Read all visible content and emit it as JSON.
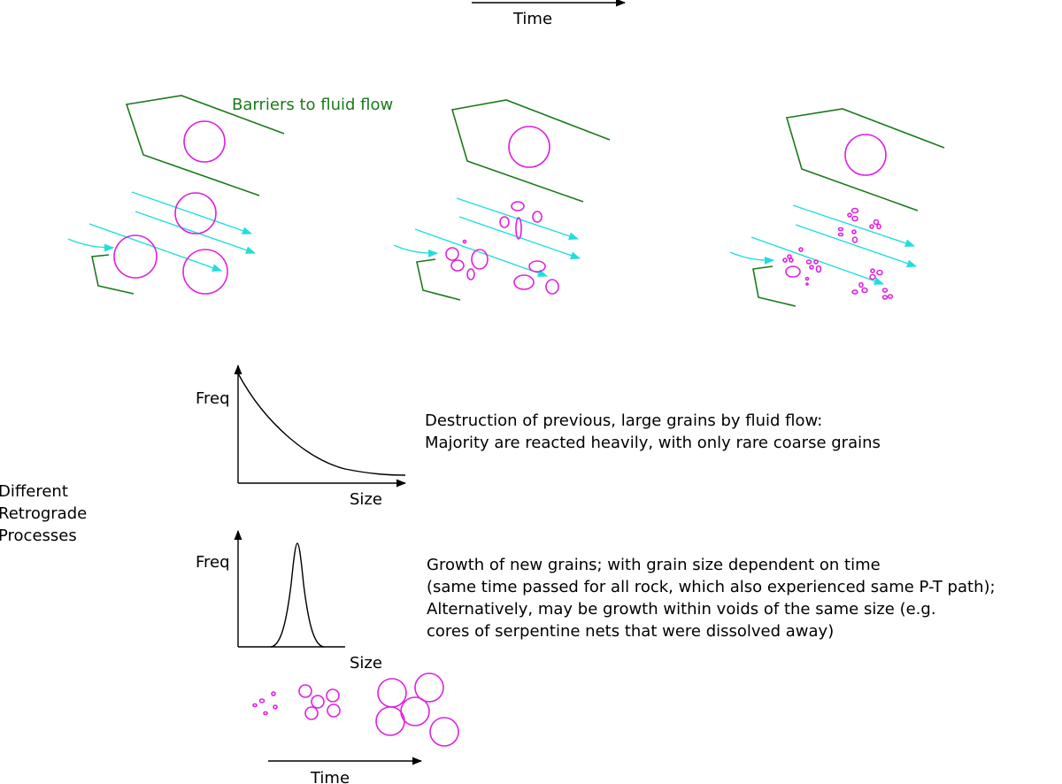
{
  "colors": {
    "barrier": "#1a7a1a",
    "grain": "#e020e0",
    "flow": "#22dddd",
    "text": "#000000"
  },
  "labels": {
    "time_top": "Time",
    "time_bottom": "Time",
    "barriers": "Barriers to fluid flow",
    "side_title": [
      "Different",
      "Retrograde",
      "Processes"
    ],
    "graph1_ylabel": "Freq",
    "graph1_xlabel": "Size",
    "graph2_ylabel": "Freq",
    "graph2_xlabel": "Size",
    "desc1": [
      "Destruction of previous, large grains by fluid flow:",
      "Majority are reacted heavily, with only rare coarse grains"
    ],
    "desc2": [
      "Growth of new grains; with grain size dependent on time",
      "(same time passed for all rock, which also experienced same P-T path);",
      "Alternatively, may be growth within voids of the same size (e.g.",
      "cores of serpentine nets that were dissolved away)"
    ]
  },
  "icons": {
    "time_arrow": "right-arrow-icon",
    "flow_arrow": "right-arrow-icon"
  }
}
